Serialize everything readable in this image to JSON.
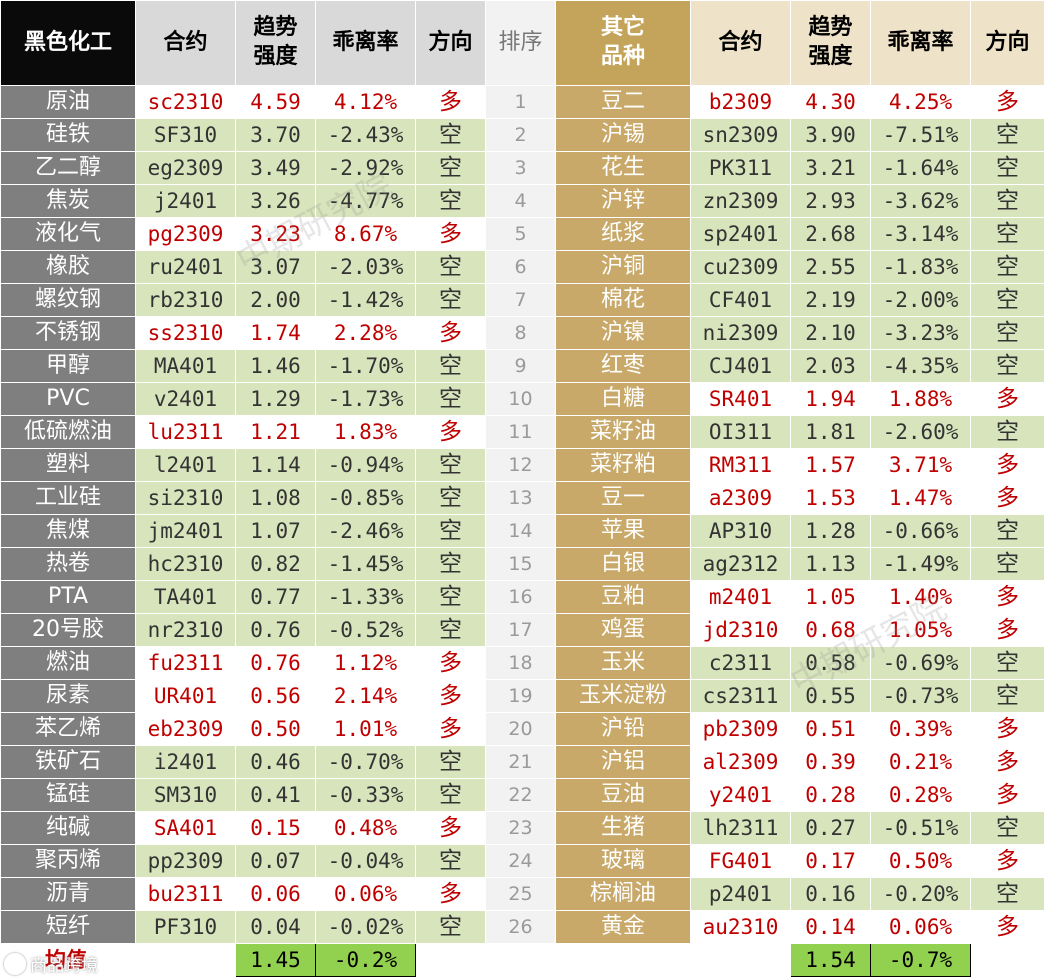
{
  "headers": {
    "left_category": "黑色化工",
    "contract": "合约",
    "trend_strength": "趋势\n强度",
    "deviation_rate": "乖离率",
    "direction": "方向",
    "rank": "排序",
    "right_category": "其它\n品种"
  },
  "left_rows": [
    {
      "name": "原油",
      "contract": "sc2310",
      "strength": "4.59",
      "deviation": "4.12%",
      "direction": "多"
    },
    {
      "name": "硅铁",
      "contract": "SF310",
      "strength": "3.70",
      "deviation": "-2.43%",
      "direction": "空"
    },
    {
      "name": "乙二醇",
      "contract": "eg2309",
      "strength": "3.49",
      "deviation": "-2.92%",
      "direction": "空"
    },
    {
      "name": "焦炭",
      "contract": "j2401",
      "strength": "3.26",
      "deviation": "-4.77%",
      "direction": "空"
    },
    {
      "name": "液化气",
      "contract": "pg2309",
      "strength": "3.23",
      "deviation": "8.67%",
      "direction": "多"
    },
    {
      "name": "橡胶",
      "contract": "ru2401",
      "strength": "3.07",
      "deviation": "-2.03%",
      "direction": "空"
    },
    {
      "name": "螺纹钢",
      "contract": "rb2310",
      "strength": "2.00",
      "deviation": "-1.42%",
      "direction": "空"
    },
    {
      "name": "不锈钢",
      "contract": "ss2310",
      "strength": "1.74",
      "deviation": "2.28%",
      "direction": "多"
    },
    {
      "name": "甲醇",
      "contract": "MA401",
      "strength": "1.46",
      "deviation": "-1.70%",
      "direction": "空"
    },
    {
      "name": "PVC",
      "contract": "v2401",
      "strength": "1.29",
      "deviation": "-1.73%",
      "direction": "空"
    },
    {
      "name": "低硫燃油",
      "contract": "lu2311",
      "strength": "1.21",
      "deviation": "1.83%",
      "direction": "多"
    },
    {
      "name": "塑料",
      "contract": "l2401",
      "strength": "1.14",
      "deviation": "-0.94%",
      "direction": "空"
    },
    {
      "name": "工业硅",
      "contract": "si2310",
      "strength": "1.08",
      "deviation": "-0.85%",
      "direction": "空"
    },
    {
      "name": "焦煤",
      "contract": "jm2401",
      "strength": "1.07",
      "deviation": "-2.46%",
      "direction": "空"
    },
    {
      "name": "热卷",
      "contract": "hc2310",
      "strength": "0.82",
      "deviation": "-1.45%",
      "direction": "空"
    },
    {
      "name": "PTA",
      "contract": "TA401",
      "strength": "0.77",
      "deviation": "-1.33%",
      "direction": "空"
    },
    {
      "name": "20号胶",
      "contract": "nr2310",
      "strength": "0.76",
      "deviation": "-0.52%",
      "direction": "空"
    },
    {
      "name": "燃油",
      "contract": "fu2311",
      "strength": "0.76",
      "deviation": "1.12%",
      "direction": "多"
    },
    {
      "name": "尿素",
      "contract": "UR401",
      "strength": "0.56",
      "deviation": "2.14%",
      "direction": "多"
    },
    {
      "name": "苯乙烯",
      "contract": "eb2309",
      "strength": "0.50",
      "deviation": "1.01%",
      "direction": "多"
    },
    {
      "name": "铁矿石",
      "contract": "i2401",
      "strength": "0.46",
      "deviation": "-0.70%",
      "direction": "空"
    },
    {
      "name": "锰硅",
      "contract": "SM310",
      "strength": "0.41",
      "deviation": "-0.33%",
      "direction": "空"
    },
    {
      "name": "纯碱",
      "contract": "SA401",
      "strength": "0.15",
      "deviation": "0.48%",
      "direction": "多"
    },
    {
      "name": "聚丙烯",
      "contract": "pp2309",
      "strength": "0.07",
      "deviation": "-0.04%",
      "direction": "空"
    },
    {
      "name": "沥青",
      "contract": "bu2311",
      "strength": "0.06",
      "deviation": "0.06%",
      "direction": "多"
    },
    {
      "name": "短纤",
      "contract": "PF310",
      "strength": "0.04",
      "deviation": "-0.02%",
      "direction": "空"
    }
  ],
  "right_rows": [
    {
      "rank": "1",
      "name": "豆二",
      "contract": "b2309",
      "strength": "4.30",
      "deviation": "4.25%",
      "direction": "多"
    },
    {
      "rank": "2",
      "name": "沪锡",
      "contract": "sn2309",
      "strength": "3.90",
      "deviation": "-7.51%",
      "direction": "空"
    },
    {
      "rank": "3",
      "name": "花生",
      "contract": "PK311",
      "strength": "3.21",
      "deviation": "-1.64%",
      "direction": "空"
    },
    {
      "rank": "4",
      "name": "沪锌",
      "contract": "zn2309",
      "strength": "2.93",
      "deviation": "-3.62%",
      "direction": "空"
    },
    {
      "rank": "5",
      "name": "纸浆",
      "contract": "sp2401",
      "strength": "2.68",
      "deviation": "-3.14%",
      "direction": "空"
    },
    {
      "rank": "6",
      "name": "沪铜",
      "contract": "cu2309",
      "strength": "2.55",
      "deviation": "-1.83%",
      "direction": "空"
    },
    {
      "rank": "7",
      "name": "棉花",
      "contract": "CF401",
      "strength": "2.19",
      "deviation": "-2.00%",
      "direction": "空"
    },
    {
      "rank": "8",
      "name": "沪镍",
      "contract": "ni2309",
      "strength": "2.10",
      "deviation": "-3.23%",
      "direction": "空"
    },
    {
      "rank": "9",
      "name": "红枣",
      "contract": "CJ401",
      "strength": "2.03",
      "deviation": "-4.35%",
      "direction": "空"
    },
    {
      "rank": "10",
      "name": "白糖",
      "contract": "SR401",
      "strength": "1.94",
      "deviation": "1.88%",
      "direction": "多"
    },
    {
      "rank": "11",
      "name": "菜籽油",
      "contract": "OI311",
      "strength": "1.81",
      "deviation": "-2.60%",
      "direction": "空"
    },
    {
      "rank": "12",
      "name": "菜籽粕",
      "contract": "RM311",
      "strength": "1.57",
      "deviation": "3.71%",
      "direction": "多"
    },
    {
      "rank": "13",
      "name": "豆一",
      "contract": "a2309",
      "strength": "1.53",
      "deviation": "1.47%",
      "direction": "多"
    },
    {
      "rank": "14",
      "name": "苹果",
      "contract": "AP310",
      "strength": "1.28",
      "deviation": "-0.66%",
      "direction": "空"
    },
    {
      "rank": "15",
      "name": "白银",
      "contract": "ag2312",
      "strength": "1.13",
      "deviation": "-1.49%",
      "direction": "空"
    },
    {
      "rank": "16",
      "name": "豆粕",
      "contract": "m2401",
      "strength": "1.05",
      "deviation": "1.40%",
      "direction": "多"
    },
    {
      "rank": "17",
      "name": "鸡蛋",
      "contract": "jd2310",
      "strength": "0.68",
      "deviation": "1.05%",
      "direction": "多"
    },
    {
      "rank": "18",
      "name": "玉米",
      "contract": "c2311",
      "strength": "0.58",
      "deviation": "-0.69%",
      "direction": "空"
    },
    {
      "rank": "19",
      "name": "玉米淀粉",
      "contract": "cs2311",
      "strength": "0.55",
      "deviation": "-0.73%",
      "direction": "空"
    },
    {
      "rank": "20",
      "name": "沪铅",
      "contract": "pb2309",
      "strength": "0.51",
      "deviation": "0.39%",
      "direction": "多"
    },
    {
      "rank": "21",
      "name": "沪铝",
      "contract": "al2309",
      "strength": "0.39",
      "deviation": "0.21%",
      "direction": "多"
    },
    {
      "rank": "22",
      "name": "豆油",
      "contract": "y2401",
      "strength": "0.28",
      "deviation": "0.28%",
      "direction": "多"
    },
    {
      "rank": "23",
      "name": "生猪",
      "contract": "lh2311",
      "strength": "0.27",
      "deviation": "-0.51%",
      "direction": "空"
    },
    {
      "rank": "24",
      "name": "玻璃",
      "contract": "FG401",
      "strength": "0.17",
      "deviation": "0.50%",
      "direction": "多"
    },
    {
      "rank": "25",
      "name": "棕榈油",
      "contract": "p2401",
      "strength": "0.16",
      "deviation": "-0.20%",
      "direction": "空"
    },
    {
      "rank": "26",
      "name": "黄金",
      "contract": "au2310",
      "strength": "0.14",
      "deviation": "0.06%",
      "direction": "多"
    }
  ],
  "averages": {
    "label": "均值",
    "left_strength": "1.45",
    "left_deviation": "-0.2%",
    "right_strength": "1.54",
    "right_deviation": "-0.7%"
  },
  "watermark": "中期研究院",
  "brand": "商品跨境",
  "colors": {
    "long_text": "#c00000",
    "short_bg": "#d8e4bc",
    "average_bg": "#92d050",
    "left_category_bg": "#7f7f7f",
    "right_category_bg": "#c8a96a"
  }
}
